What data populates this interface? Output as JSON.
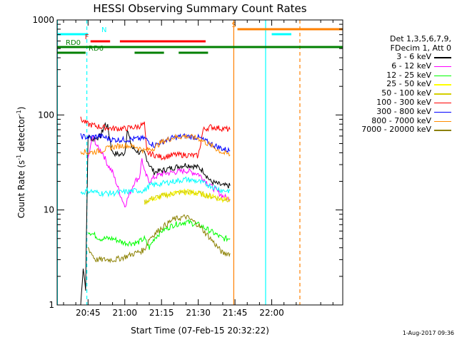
{
  "chart_data": {
    "type": "line",
    "title": "HESSI Observing Summary Count Rates",
    "xlabel": "Start Time (07-Feb-15 20:32:22)",
    "ylabel": "Count Rate (s",
    "ylabel_sup1": "-1",
    "ylabel_mid": " detector",
    "ylabel_sup2": "-1",
    "ylabel_end": ")",
    "yscale": "log",
    "ylim": [
      1,
      1000
    ],
    "xlim_minutes": [
      32.37,
      149.0
    ],
    "y_ticks": [
      {
        "value": 1,
        "label": "1"
      },
      {
        "value": 10,
        "label": "10"
      },
      {
        "value": 100,
        "label": "100"
      },
      {
        "value": 1000,
        "label": "1000"
      }
    ],
    "x_ticks": [
      {
        "value": 45,
        "label": "20:45"
      },
      {
        "value": 60,
        "label": "21:00"
      },
      {
        "value": 75,
        "label": "21:15"
      },
      {
        "value": 90,
        "label": "21:30"
      },
      {
        "value": 105,
        "label": "21:45"
      },
      {
        "value": 120,
        "label": "22:00"
      }
    ],
    "legend_header": [
      "Det 1,3,5,6,7,9,",
      "FDecim 1, Att 0"
    ],
    "series": [
      {
        "name": "3 - 6 keV",
        "color": "#000000",
        "points": [
          [
            42,
            1
          ],
          [
            43,
            2.5
          ],
          [
            44,
            1.5
          ],
          [
            45,
            60
          ],
          [
            47,
            55
          ],
          [
            50,
            60
          ],
          [
            52,
            80
          ],
          [
            53,
            75
          ],
          [
            55,
            40
          ],
          [
            58,
            38
          ],
          [
            60,
            40
          ],
          [
            61,
            70
          ],
          [
            62,
            55
          ],
          [
            63,
            45
          ],
          [
            66,
            40
          ],
          [
            68,
            40
          ],
          [
            70,
            30
          ],
          [
            72,
            25
          ],
          [
            75,
            26
          ],
          [
            80,
            28
          ],
          [
            85,
            30
          ],
          [
            88,
            29
          ],
          [
            90,
            28
          ],
          [
            92,
            26
          ],
          [
            95,
            20
          ],
          [
            100,
            18
          ],
          [
            103,
            18
          ]
        ]
      },
      {
        "name": "6 - 12 keV",
        "color": "#ff00ff",
        "points": [
          [
            45,
            35
          ],
          [
            47,
            60
          ],
          [
            49,
            45
          ],
          [
            51,
            40
          ],
          [
            53,
            30
          ],
          [
            55,
            25
          ],
          [
            58,
            15
          ],
          [
            60,
            11
          ],
          [
            62,
            15
          ],
          [
            64,
            20
          ],
          [
            66,
            22
          ],
          [
            67,
            35
          ],
          [
            68,
            25
          ],
          [
            70,
            20
          ],
          [
            72,
            22
          ],
          [
            75,
            24
          ],
          [
            80,
            25
          ],
          [
            85,
            26
          ],
          [
            90,
            24
          ],
          [
            95,
            18
          ],
          [
            100,
            14
          ],
          [
            103,
            13
          ]
        ]
      },
      {
        "name": "12 - 25 keV",
        "color": "#00ff00",
        "points": [
          [
            45,
            6
          ],
          [
            50,
            5
          ],
          [
            55,
            5
          ],
          [
            60,
            4.5
          ],
          [
            65,
            4.5
          ],
          [
            68,
            5
          ],
          [
            70,
            4
          ],
          [
            72,
            5
          ],
          [
            75,
            6
          ],
          [
            80,
            7
          ],
          [
            85,
            7.5
          ],
          [
            90,
            7
          ],
          [
            95,
            6
          ],
          [
            100,
            5
          ],
          [
            103,
            5
          ]
        ]
      },
      {
        "name": "25 - 50 keV",
        "color": "#ffff00",
        "points": [
          [
            68,
            12
          ],
          [
            70,
            13
          ],
          [
            75,
            14
          ],
          [
            80,
            15
          ],
          [
            85,
            15.5
          ],
          [
            90,
            15
          ],
          [
            95,
            14
          ],
          [
            100,
            13
          ],
          [
            103,
            13
          ]
        ]
      },
      {
        "name": "50 - 100 keV",
        "color": "#d4cf00",
        "points": [
          [
            68,
            12
          ],
          [
            70,
            13
          ],
          [
            75,
            14
          ],
          [
            80,
            15
          ],
          [
            85,
            15.5
          ],
          [
            90,
            15
          ],
          [
            95,
            14
          ],
          [
            100,
            13
          ],
          [
            103,
            13
          ]
        ]
      },
      {
        "name": "100 - 300 keV",
        "color": "#ff0000",
        "points": [
          [
            42,
            90
          ],
          [
            45,
            80
          ],
          [
            50,
            75
          ],
          [
            55,
            72
          ],
          [
            60,
            72
          ],
          [
            65,
            75
          ],
          [
            68,
            80
          ],
          [
            69,
            40
          ],
          [
            72,
            38
          ],
          [
            75,
            36
          ],
          [
            80,
            38
          ],
          [
            85,
            38
          ],
          [
            90,
            37
          ],
          [
            92,
            70
          ],
          [
            95,
            75
          ],
          [
            100,
            72
          ],
          [
            103,
            70
          ]
        ]
      },
      {
        "name": "300 - 800 keV",
        "color": "#0000ff",
        "points": [
          [
            42,
            60
          ],
          [
            45,
            58
          ],
          [
            50,
            60
          ],
          [
            55,
            55
          ],
          [
            60,
            55
          ],
          [
            65,
            56
          ],
          [
            68,
            57
          ],
          [
            72,
            48
          ],
          [
            75,
            52
          ],
          [
            80,
            58
          ],
          [
            85,
            60
          ],
          [
            90,
            58
          ],
          [
            95,
            50
          ],
          [
            100,
            44
          ],
          [
            103,
            42
          ]
        ]
      },
      {
        "name": "800 - 7000 keV",
        "color": "#ff8c00",
        "points": [
          [
            42,
            42
          ],
          [
            45,
            40
          ],
          [
            50,
            42
          ],
          [
            55,
            46
          ],
          [
            60,
            48
          ],
          [
            65,
            46
          ],
          [
            68,
            42
          ],
          [
            72,
            45
          ],
          [
            75,
            52
          ],
          [
            80,
            58
          ],
          [
            85,
            60
          ],
          [
            90,
            57
          ],
          [
            95,
            48
          ],
          [
            100,
            40
          ],
          [
            103,
            38
          ]
        ]
      },
      {
        "name": "7000 - 20000 keV",
        "color": "#8b8000",
        "points": [
          [
            45,
            4
          ],
          [
            48,
            3
          ],
          [
            52,
            3
          ],
          [
            56,
            3
          ],
          [
            60,
            3.2
          ],
          [
            64,
            3.5
          ],
          [
            68,
            3.8
          ],
          [
            70,
            5
          ],
          [
            75,
            6.5
          ],
          [
            80,
            8
          ],
          [
            85,
            8.5
          ],
          [
            90,
            7
          ],
          [
            95,
            5
          ],
          [
            100,
            3.5
          ],
          [
            103,
            3.5
          ]
        ]
      },
      {
        "name": "",
        "color": "#00ffff",
        "points": [
          [
            42,
            15
          ],
          [
            45,
            16
          ],
          [
            50,
            15
          ],
          [
            55,
            15
          ],
          [
            60,
            15.5
          ],
          [
            65,
            16
          ],
          [
            68,
            16
          ],
          [
            70,
            18
          ],
          [
            75,
            19
          ],
          [
            80,
            20
          ],
          [
            85,
            21
          ],
          [
            90,
            20
          ],
          [
            95,
            18
          ],
          [
            100,
            16
          ],
          [
            103,
            16
          ]
        ]
      }
    ],
    "state_bars": [
      {
        "label": "N",
        "color": "#00ffff",
        "y_row": 1,
        "segments": [
          [
            32.37,
            45
          ],
          [
            120,
            128
          ]
        ]
      },
      {
        "label": "F",
        "color": "#ff0000",
        "y_row": 2,
        "segments": [
          [
            46,
            54
          ],
          [
            58,
            93
          ]
        ]
      },
      {
        "label": "S",
        "color": "#ff8000",
        "y_row": 0,
        "segments": [
          [
            106,
            149
          ]
        ]
      },
      {
        "label": "RD0",
        "color": "#008000",
        "y_row": 3,
        "segments": [
          [
            32.37,
            149
          ]
        ]
      },
      {
        "label": "RD6",
        "color": "#008000",
        "y_row": 4,
        "segments": [
          [
            32.37,
            44
          ],
          [
            64,
            76
          ],
          [
            82,
            94
          ]
        ]
      }
    ],
    "vlines": [
      {
        "x": 32.5,
        "color": "#00ffff",
        "style": "solid"
      },
      {
        "x": 44.5,
        "color": "#00ffff",
        "style": "dashed"
      },
      {
        "x": 104.5,
        "color": "#ff8000",
        "style": "solid"
      },
      {
        "x": 117.5,
        "color": "#00ffff",
        "style": "solid"
      },
      {
        "x": 131.5,
        "color": "#ff8000",
        "style": "dashed"
      }
    ],
    "grid": false,
    "legend_position": "right"
  },
  "stamp": "1-Aug-2017 09:36"
}
